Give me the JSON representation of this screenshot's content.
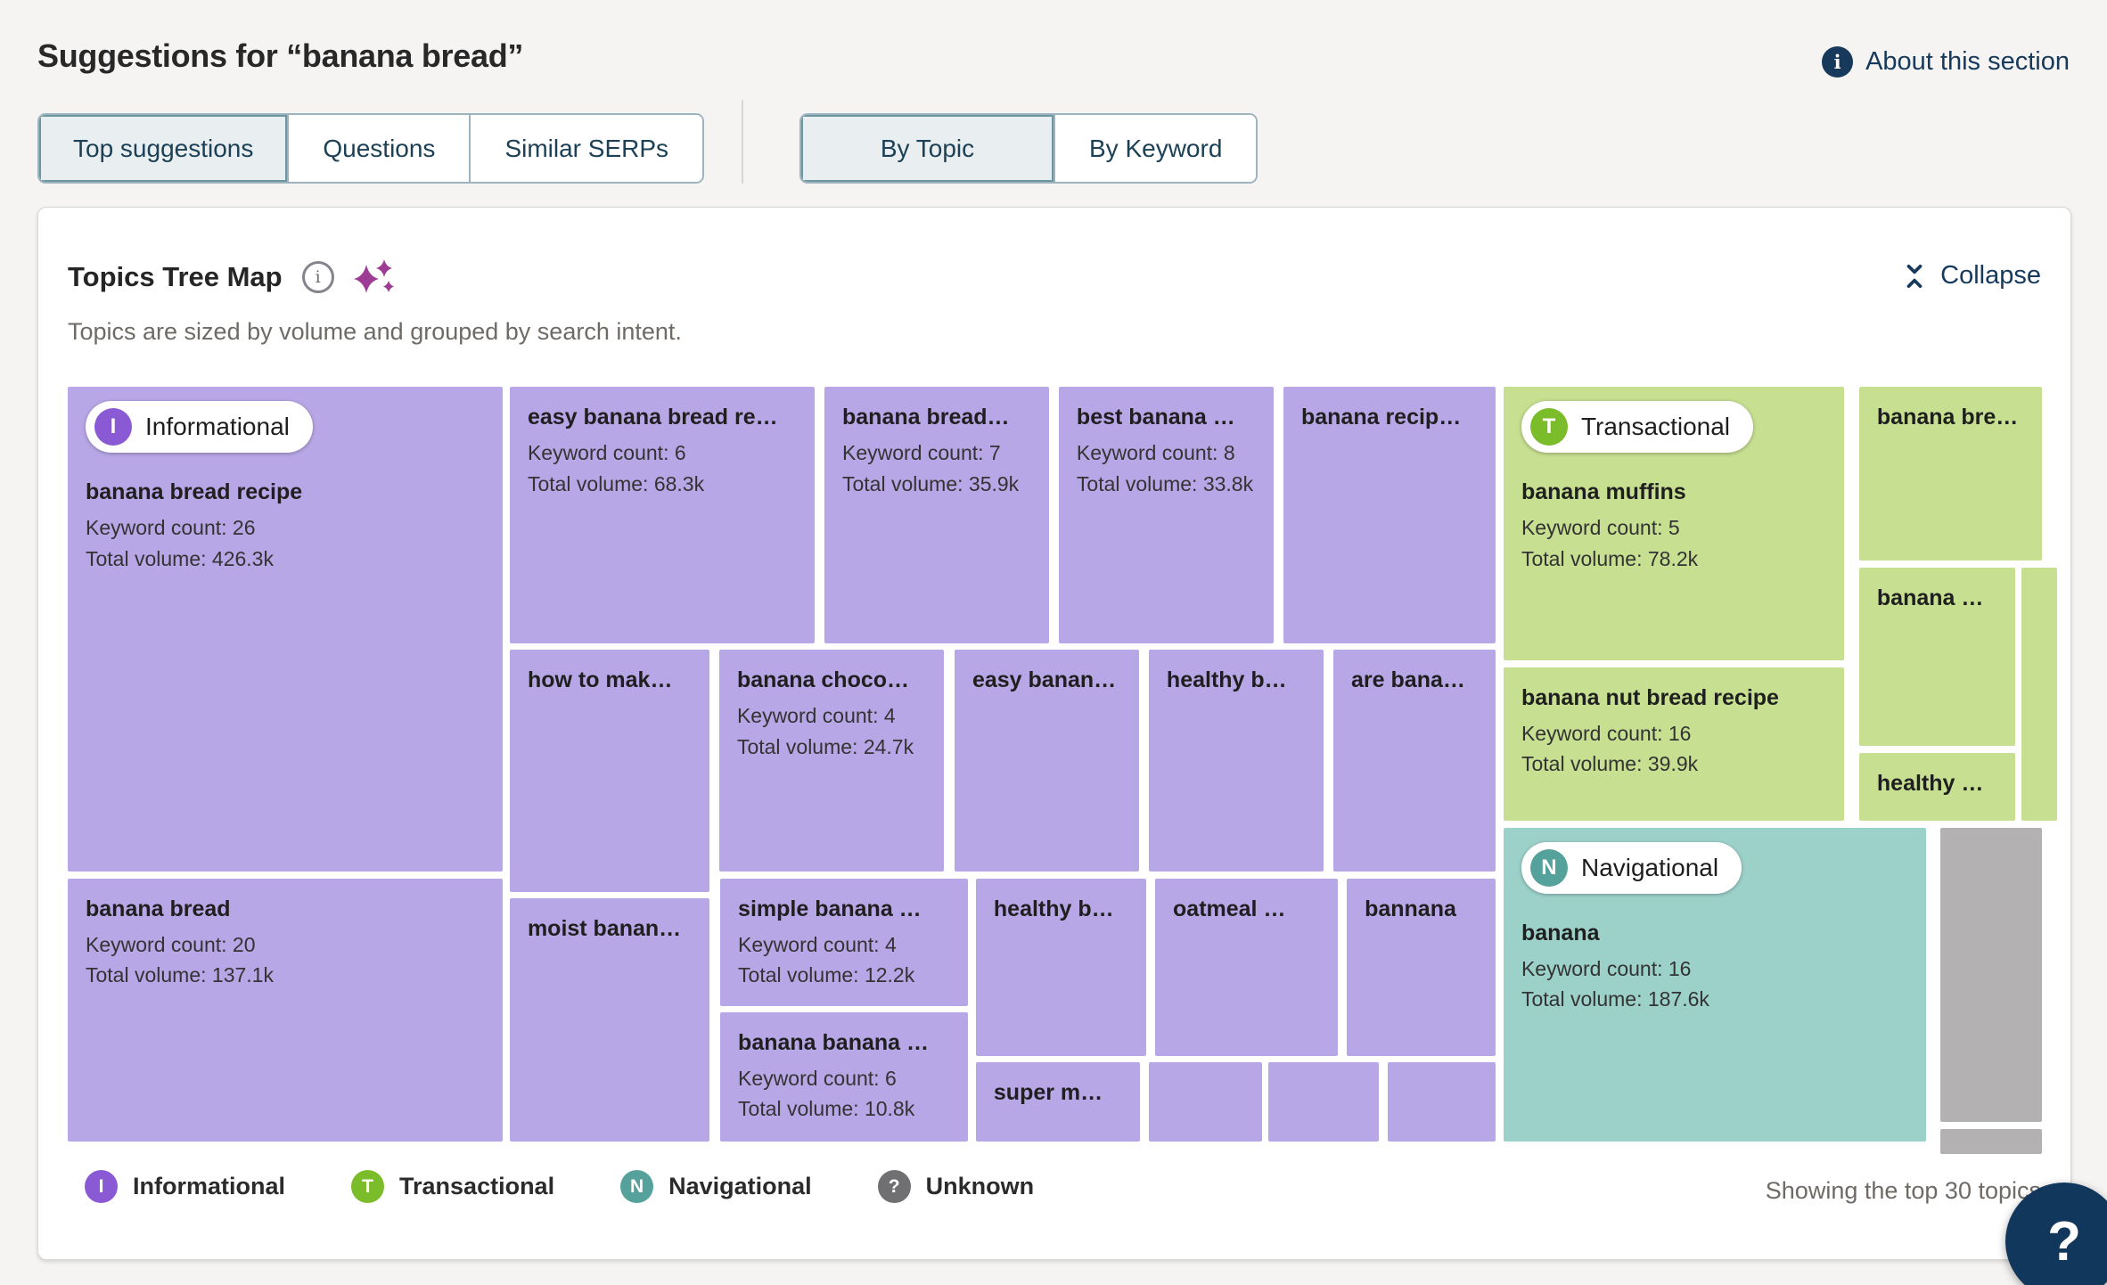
{
  "page": {
    "title": "Suggestions for “banana bread”"
  },
  "header": {
    "about_label": "About this section"
  },
  "suggestion_tabs": [
    {
      "label": "Top suggestions",
      "active": true
    },
    {
      "label": "Questions",
      "active": false
    },
    {
      "label": "Similar SERPs",
      "active": false
    }
  ],
  "view_tabs": [
    {
      "label": "By Topic",
      "active": true
    },
    {
      "label": "By Keyword",
      "active": false
    }
  ],
  "card": {
    "title": "Topics Tree Map",
    "subtitle": "Topics are sized by volume and grouped by search intent.",
    "collapse_label": "Collapse",
    "footer_note": "Showing the top 30 topics"
  },
  "treemap": {
    "intent_colors": {
      "informational": "#b8a7e6",
      "transactional": "#c6df90",
      "navigational": "#9cd1ca",
      "unknown": "#b4b1b3"
    },
    "badge_colors": {
      "informational": "#8a5ad5",
      "transactional": "#7abc29",
      "navigational": "#55a29d",
      "unknown": "#707072"
    },
    "cells": [
      {
        "name": "banana-bread-recipe",
        "intent": "informational",
        "badge": "Informational",
        "badge_letter": "I",
        "label": "banana bread recipe",
        "kw": "Keyword count: 26",
        "vol": "Total volume: 426.3k"
      },
      {
        "name": "easy-banana-bread-re",
        "intent": "informational",
        "label": "easy banana bread re…",
        "kw": "Keyword count: 6",
        "vol": "Total volume: 68.3k"
      },
      {
        "name": "banana-bread-trunc",
        "intent": "informational",
        "label": "banana bread…",
        "kw": "Keyword count: 7",
        "vol": "Total volume: 35.9k"
      },
      {
        "name": "best-banana",
        "intent": "informational",
        "label": "best banana …",
        "kw": "Keyword count: 8",
        "vol": "Total volume: 33.8k"
      },
      {
        "name": "banana-recip",
        "intent": "informational",
        "label": "banana recip…"
      },
      {
        "name": "how-to-mak",
        "intent": "informational",
        "label": "how to mak…"
      },
      {
        "name": "banana-choco",
        "intent": "informational",
        "label": "banana choco…",
        "kw": "Keyword count: 4",
        "vol": "Total volume: 24.7k"
      },
      {
        "name": "easy-banan",
        "intent": "informational",
        "label": "easy banan…"
      },
      {
        "name": "healthy-b-row2",
        "intent": "informational",
        "label": "healthy b…"
      },
      {
        "name": "are-bana",
        "intent": "informational",
        "label": "are bana…"
      },
      {
        "name": "banana-bread",
        "intent": "informational",
        "label": "banana bread",
        "kw": "Keyword count: 20",
        "vol": "Total volume: 137.1k"
      },
      {
        "name": "moist-banan",
        "intent": "informational",
        "label": "moist banan…"
      },
      {
        "name": "simple-banana",
        "intent": "informational",
        "label": "simple banana …",
        "kw": "Keyword count: 4",
        "vol": "Total volume: 12.2k"
      },
      {
        "name": "banana-banana",
        "intent": "informational",
        "label": "banana banana …",
        "kw": "Keyword count: 6",
        "vol": "Total volume: 10.8k"
      },
      {
        "name": "healthy-b-row3",
        "intent": "informational",
        "label": "healthy b…"
      },
      {
        "name": "oatmeal",
        "intent": "informational",
        "label": "oatmeal …"
      },
      {
        "name": "bannana",
        "intent": "informational",
        "label": "bannana"
      },
      {
        "name": "super-m",
        "intent": "informational",
        "label": "super m…"
      },
      {
        "name": "small-1",
        "intent": "informational",
        "label": ""
      },
      {
        "name": "small-2",
        "intent": "informational",
        "label": ""
      },
      {
        "name": "small-3",
        "intent": "informational",
        "label": ""
      },
      {
        "name": "banana-muffins",
        "intent": "transactional",
        "badge": "Transactional",
        "badge_letter": "T",
        "label": "banana muffins",
        "kw": "Keyword count: 5",
        "vol": "Total volume: 78.2k"
      },
      {
        "name": "banana-nut-bread-recipe",
        "intent": "transactional",
        "label": "banana nut bread recipe",
        "kw": "Keyword count: 16",
        "vol": "Total volume: 39.9k"
      },
      {
        "name": "banana-bre",
        "intent": "transactional",
        "label": "banana bre…"
      },
      {
        "name": "banana-trunc",
        "intent": "transactional",
        "label": "banana …"
      },
      {
        "name": "green-sliver",
        "intent": "transactional",
        "label": ""
      },
      {
        "name": "healthy-trunc",
        "intent": "transactional",
        "label": "healthy …"
      },
      {
        "name": "banana-nav",
        "intent": "navigational",
        "badge": "Navigational",
        "badge_letter": "N",
        "label": "banana",
        "kw": "Keyword count: 16",
        "vol": "Total volume: 187.6k"
      },
      {
        "name": "unknown-large",
        "intent": "unknown",
        "label": ""
      },
      {
        "name": "unknown-strip",
        "intent": "unknown",
        "label": ""
      }
    ]
  },
  "legend": {
    "items": [
      {
        "letter": "I",
        "label": "Informational",
        "color": "#8a5ad5"
      },
      {
        "letter": "T",
        "label": "Transactional",
        "color": "#7abc29"
      },
      {
        "letter": "N",
        "label": "Navigational",
        "color": "#55a29d"
      },
      {
        "letter": "?",
        "label": "Unknown",
        "color": "#707072"
      }
    ]
  },
  "help_button": {
    "label": "?"
  },
  "colors": {
    "accent_navy": "#17395c",
    "page_bg": "#f5f4f2",
    "sparkle": "#9c3c94"
  }
}
